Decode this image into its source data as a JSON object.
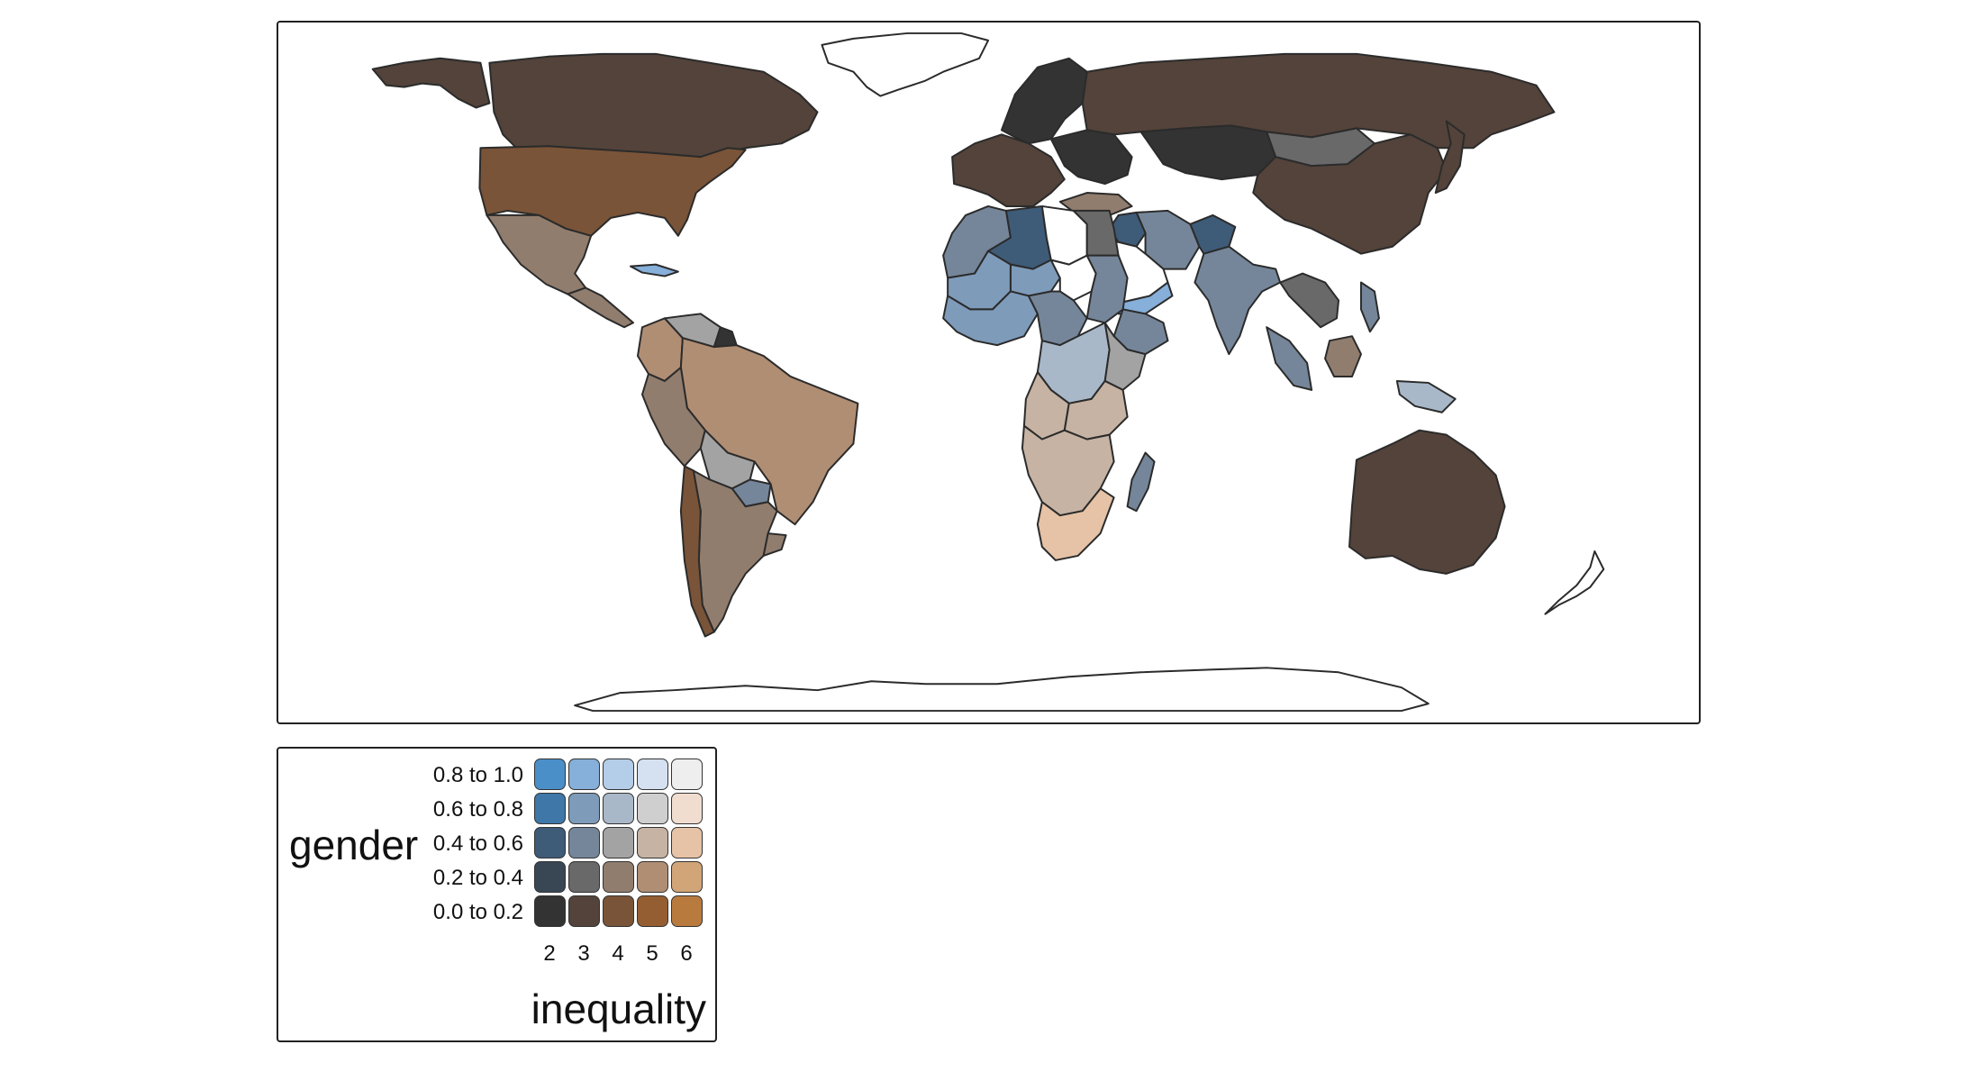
{
  "legend": {
    "row_title": "gender",
    "column_title": "inequality",
    "row_labels": [
      "0.8 to 1.0",
      "0.6 to 0.8",
      "0.4 to 0.6",
      "0.2 to 0.4",
      "0.0 to 0.2"
    ],
    "column_labels": [
      "2",
      "3",
      "4",
      "5",
      "6"
    ],
    "grid_colors": [
      [
        "#4b8fc9",
        "#86afd9",
        "#b4cde8",
        "#d5e1f1",
        "#eeeeee"
      ],
      [
        "#3f77a8",
        "#7e9bba",
        "#a9b8c9",
        "#cfcfcf",
        "#f1ddd0"
      ],
      [
        "#3e5b78",
        "#75869a",
        "#a3a3a3",
        "#c6b3a3",
        "#e6c3a6"
      ],
      [
        "#394654",
        "#696969",
        "#917d6e",
        "#b08e74",
        "#d1a577"
      ],
      [
        "#333333",
        "#53433a",
        "#7a5438",
        "#955e32",
        "#b97a3e"
      ]
    ]
  },
  "colors": {
    "map_outline": "#2b2b2b",
    "no_data_fill": "#ffffff"
  },
  "map_data": {
    "type": "bivariate choropleth world map",
    "regions": [
      {
        "id": "canada",
        "color": "#53433a"
      },
      {
        "id": "alaska",
        "color": "#53433a"
      },
      {
        "id": "usa",
        "color": "#7a5438"
      },
      {
        "id": "greenland",
        "color": "#ffffff"
      },
      {
        "id": "mexico",
        "color": "#917d6e"
      },
      {
        "id": "central-america",
        "color": "#917d6e"
      },
      {
        "id": "cuba",
        "color": "#86afd9"
      },
      {
        "id": "colombia",
        "color": "#b08e74"
      },
      {
        "id": "venezuela",
        "color": "#a3a3a3"
      },
      {
        "id": "guyana",
        "color": "#333333"
      },
      {
        "id": "brazil",
        "color": "#b08e74"
      },
      {
        "id": "peru",
        "color": "#917d6e"
      },
      {
        "id": "bolivia",
        "color": "#a3a3a3"
      },
      {
        "id": "paraguay",
        "color": "#75869a"
      },
      {
        "id": "argentina",
        "color": "#917d6e"
      },
      {
        "id": "chile",
        "color": "#7a5438"
      },
      {
        "id": "uruguay",
        "color": "#917d6e"
      },
      {
        "id": "russia",
        "color": "#53433a"
      },
      {
        "id": "scandinavia",
        "color": "#333333"
      },
      {
        "id": "western-europe",
        "color": "#53433a"
      },
      {
        "id": "eastern-europe",
        "color": "#333333"
      },
      {
        "id": "kazakhstan",
        "color": "#333333"
      },
      {
        "id": "mongolia",
        "color": "#696969"
      },
      {
        "id": "china",
        "color": "#53433a"
      },
      {
        "id": "turkey",
        "color": "#917d6e"
      },
      {
        "id": "iran",
        "color": "#75869a"
      },
      {
        "id": "iraq",
        "color": "#3e5b78"
      },
      {
        "id": "saudi-arabia",
        "color": "#ffffff"
      },
      {
        "id": "yemen",
        "color": "#86afd9"
      },
      {
        "id": "afghanistan",
        "color": "#3e5b78"
      },
      {
        "id": "india",
        "color": "#75869a"
      },
      {
        "id": "southeast-asia",
        "color": "#696969"
      },
      {
        "id": "indonesia",
        "color": "#75869a"
      },
      {
        "id": "borneo",
        "color": "#917d6e"
      },
      {
        "id": "new-guinea",
        "color": "#a9b8c9"
      },
      {
        "id": "philippines",
        "color": "#75869a"
      },
      {
        "id": "japan",
        "color": "#53433a"
      },
      {
        "id": "australia",
        "color": "#53433a"
      },
      {
        "id": "new-zealand",
        "color": "#ffffff"
      },
      {
        "id": "north-africa-west",
        "color": "#75869a"
      },
      {
        "id": "algeria",
        "color": "#3e5b78"
      },
      {
        "id": "libya",
        "color": "#ffffff"
      },
      {
        "id": "egypt",
        "color": "#696969"
      },
      {
        "id": "sahel-west",
        "color": "#7e9bba"
      },
      {
        "id": "niger",
        "color": "#7e9bba"
      },
      {
        "id": "chad",
        "color": "#ffffff"
      },
      {
        "id": "sudan",
        "color": "#75869a"
      },
      {
        "id": "ethiopia",
        "color": "#75869a"
      },
      {
        "id": "west-africa-coast",
        "color": "#7e9bba"
      },
      {
        "id": "central-africa",
        "color": "#75869a"
      },
      {
        "id": "congo-drc",
        "color": "#a9b8c9"
      },
      {
        "id": "east-africa",
        "color": "#a3a3a3"
      },
      {
        "id": "angola",
        "color": "#c6b3a3"
      },
      {
        "id": "zambia",
        "color": "#c6b3a3"
      },
      {
        "id": "southern-africa",
        "color": "#c6b3a3"
      },
      {
        "id": "south-africa",
        "color": "#e6c3a6"
      },
      {
        "id": "madagascar",
        "color": "#75869a"
      },
      {
        "id": "antarctica",
        "color": "#ffffff"
      }
    ]
  }
}
